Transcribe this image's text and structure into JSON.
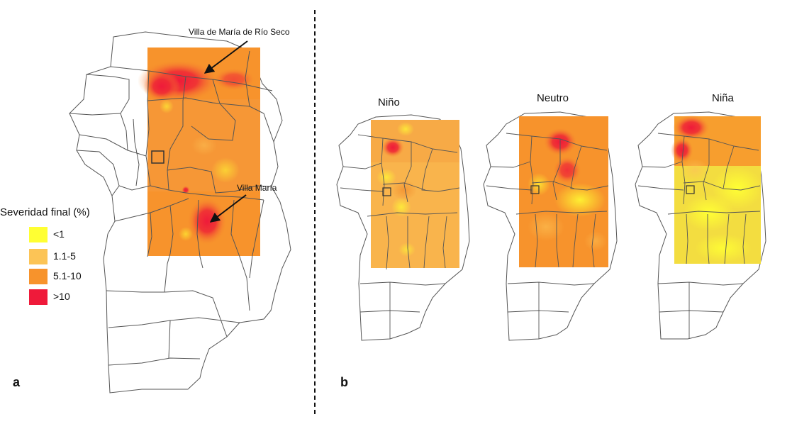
{
  "legend": {
    "title": "Severidad final (%)",
    "items": [
      {
        "label": "<1",
        "color": "#ffff33"
      },
      {
        "label": "1.1-5",
        "color": "#fcc456"
      },
      {
        "label": "5.1-10",
        "color": "#f7932c"
      },
      {
        "label": ">10",
        "color": "#ef1a3a"
      }
    ]
  },
  "panel_a": {
    "letter": "a",
    "callouts": [
      "Villa de María de Río Seco",
      "Villa María"
    ]
  },
  "panel_b": {
    "letter": "b",
    "maps": [
      {
        "title": "Niño"
      },
      {
        "title": "Neutro"
      },
      {
        "title": "Niña"
      }
    ]
  }
}
